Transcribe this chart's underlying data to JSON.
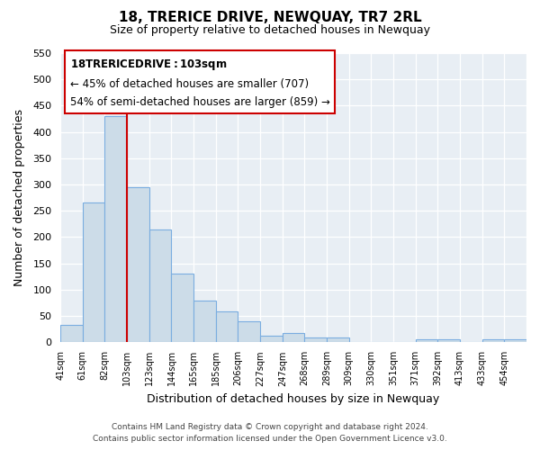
{
  "title": "18, TRERICE DRIVE, NEWQUAY, TR7 2RL",
  "subtitle": "Size of property relative to detached houses in Newquay",
  "xlabel": "Distribution of detached houses by size in Newquay",
  "ylabel": "Number of detached properties",
  "footer_line1": "Contains HM Land Registry data © Crown copyright and database right 2024.",
  "footer_line2": "Contains public sector information licensed under the Open Government Licence v3.0.",
  "bin_labels": [
    "41sqm",
    "61sqm",
    "82sqm",
    "103sqm",
    "123sqm",
    "144sqm",
    "165sqm",
    "185sqm",
    "206sqm",
    "227sqm",
    "247sqm",
    "268sqm",
    "289sqm",
    "309sqm",
    "330sqm",
    "351sqm",
    "371sqm",
    "392sqm",
    "413sqm",
    "433sqm",
    "454sqm"
  ],
  "bar_values": [
    32,
    265,
    430,
    295,
    215,
    130,
    79,
    59,
    40,
    13,
    18,
    8,
    8,
    0,
    0,
    0,
    5,
    5,
    0,
    5,
    5
  ],
  "bar_color": "#ccdce8",
  "bar_edge_color": "#7aade0",
  "vline_x_index": 3,
  "vline_color": "#cc0000",
  "ylim": [
    0,
    550
  ],
  "yticks": [
    0,
    50,
    100,
    150,
    200,
    250,
    300,
    350,
    400,
    450,
    500,
    550
  ],
  "annotation_title": "18 TRERICE DRIVE: 103sqm",
  "annotation_line1": "← 45% of detached houses are smaller (707)",
  "annotation_line2": "54% of semi-detached houses are larger (859) →",
  "box_color": "#ffffff",
  "box_edge_color": "#cc0000",
  "bg_color": "#e8eef4"
}
